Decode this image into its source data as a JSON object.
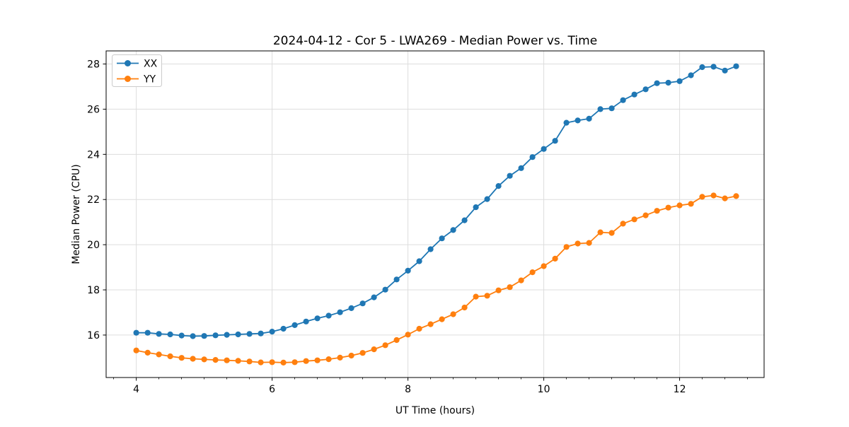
{
  "figure": {
    "background": "#ffffff"
  },
  "chart_data": {
    "type": "line",
    "title": "2024-04-12 - Cor 5 - LWA269 - Median Power vs. Time",
    "xlabel": "UT Time (hours)",
    "ylabel": "Median Power (CPU)",
    "xlim": [
      3.556,
      13.244
    ],
    "ylim": [
      14.12,
      28.58
    ],
    "xticks": [
      4,
      6,
      8,
      10,
      12
    ],
    "yticks": [
      16,
      18,
      20,
      22,
      24,
      26,
      28
    ],
    "x_minor_tick_step": 0.3333,
    "grid": true,
    "legend_position": "upper left",
    "background": "#ffffff",
    "grid_color": "#dddddd",
    "spine_color": "#000000",
    "x": [
      4.0,
      4.167,
      4.333,
      4.5,
      4.667,
      4.833,
      5.0,
      5.167,
      5.333,
      5.5,
      5.667,
      5.833,
      6.0,
      6.167,
      6.333,
      6.5,
      6.667,
      6.833,
      7.0,
      7.167,
      7.333,
      7.5,
      7.667,
      7.833,
      8.0,
      8.167,
      8.333,
      8.5,
      8.667,
      8.833,
      9.0,
      9.167,
      9.333,
      9.5,
      9.667,
      9.833,
      10.0,
      10.167,
      10.333,
      10.5,
      10.667,
      10.833,
      11.0,
      11.167,
      11.333,
      11.5,
      11.667,
      11.833,
      12.0,
      12.167,
      12.333,
      12.5,
      12.667,
      12.833
    ],
    "series": [
      {
        "name": "XX",
        "color": "#1f77b4",
        "values": [
          16.1,
          16.1,
          16.05,
          16.03,
          15.98,
          15.95,
          15.96,
          15.99,
          16.01,
          16.03,
          16.05,
          16.07,
          16.15,
          16.28,
          16.44,
          16.6,
          16.74,
          16.86,
          17.01,
          17.19,
          17.4,
          17.67,
          18.01,
          18.46,
          18.85,
          19.27,
          19.8,
          20.28,
          20.65,
          21.08,
          21.66,
          22.02,
          22.6,
          23.05,
          23.39,
          23.88,
          24.24,
          24.6,
          25.4,
          25.5,
          25.58,
          26.0,
          26.04,
          26.4,
          26.65,
          26.88,
          27.15,
          27.17,
          27.24,
          27.5,
          27.86,
          27.88,
          27.71,
          27.9
        ]
      },
      {
        "name": "YY",
        "color": "#ff7f0e",
        "values": [
          15.32,
          15.22,
          15.14,
          15.06,
          14.99,
          14.95,
          14.92,
          14.9,
          14.88,
          14.86,
          14.83,
          14.79,
          14.8,
          14.78,
          14.8,
          14.85,
          14.88,
          14.93,
          15.0,
          15.09,
          15.21,
          15.37,
          15.55,
          15.78,
          16.02,
          16.28,
          16.48,
          16.7,
          16.92,
          17.22,
          17.7,
          17.74,
          17.98,
          18.12,
          18.42,
          18.78,
          19.05,
          19.38,
          19.9,
          20.05,
          20.08,
          20.55,
          20.52,
          20.93,
          21.12,
          21.3,
          21.5,
          21.64,
          21.74,
          21.81,
          22.12,
          22.18,
          22.05,
          22.15
        ]
      }
    ]
  }
}
